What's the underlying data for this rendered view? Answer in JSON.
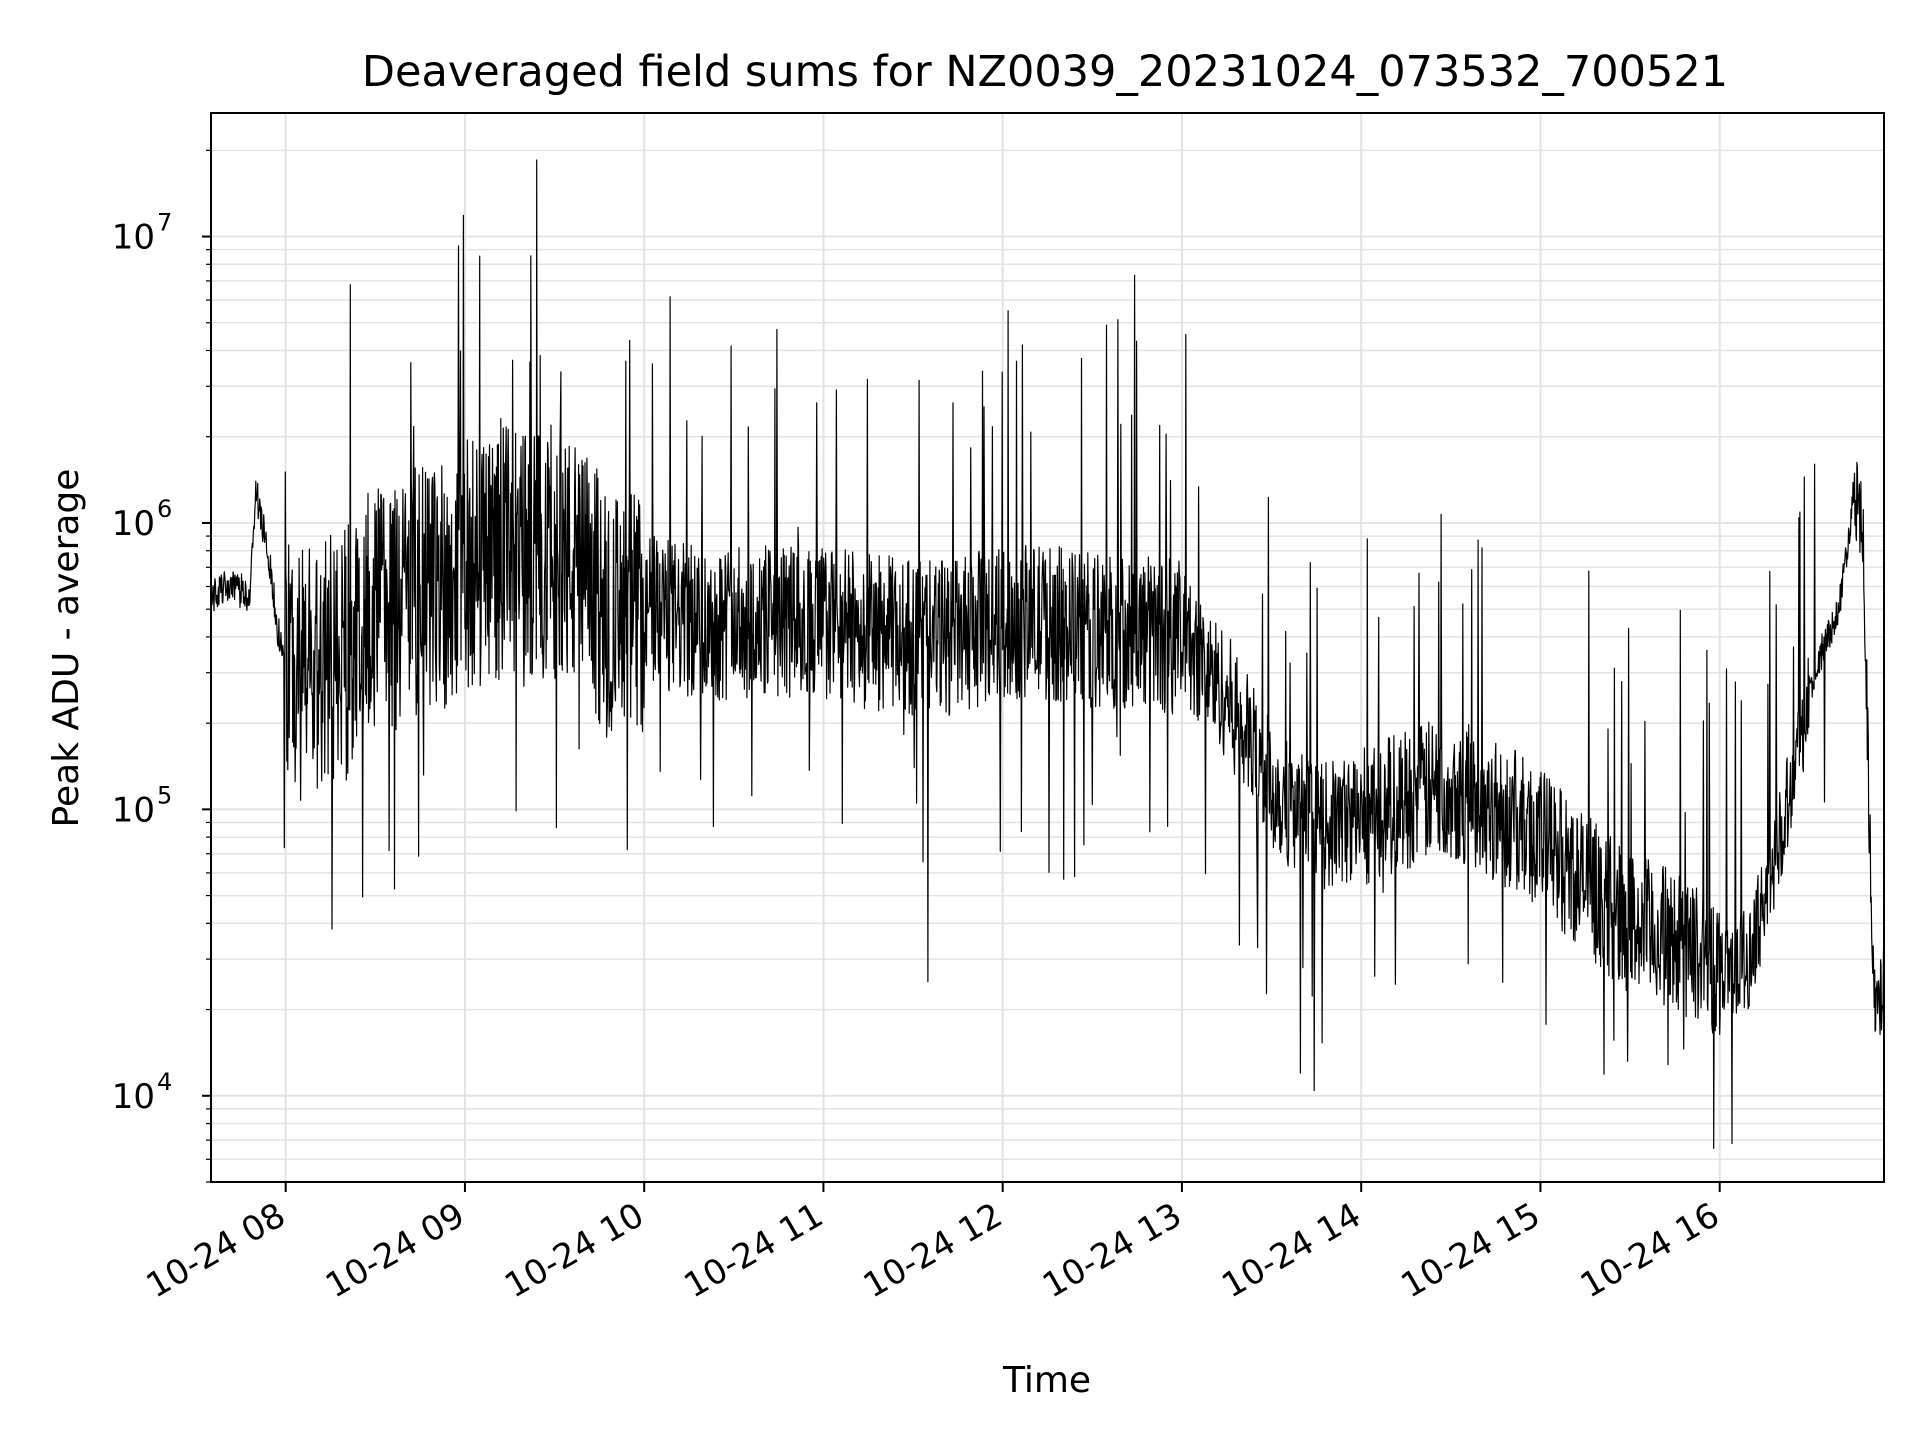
{
  "chart_data": {
    "type": "line",
    "title": "Deaveraged field sums for NZ0039_20231024_073532_700521",
    "xlabel": "Time",
    "ylabel": "Peak ADU - average",
    "yscale": "log",
    "ylim": [
      5000,
      27000000
    ],
    "xlim": [
      "2023-10-24 07:35",
      "2023-10-24 16:55"
    ],
    "grid": true,
    "line_color": "#000000",
    "x_ticks": [
      "10-24 08",
      "10-24 09",
      "10-24 10",
      "10-24 11",
      "10-24 12",
      "10-24 13",
      "10-24 14",
      "10-24 15",
      "10-24 16"
    ],
    "y_ticks": [
      {
        "base": "10",
        "exp": "4",
        "value": 10000
      },
      {
        "base": "10",
        "exp": "5",
        "value": 100000
      },
      {
        "base": "10",
        "exp": "6",
        "value": 1000000
      },
      {
        "base": "10",
        "exp": "7",
        "value": 10000000
      }
    ],
    "series": [
      {
        "x": [
          "2023-10-24 07:35",
          "2023-10-24 07:40",
          "2023-10-24 07:45",
          "2023-10-24 07:48",
          "2023-10-24 07:50",
          "2023-10-24 07:53",
          "2023-10-24 07:55",
          "2023-10-24 07:57",
          "2023-10-24 08:00",
          "2023-10-24 08:10",
          "2023-10-24 08:20",
          "2023-10-24 08:30",
          "2023-10-24 08:40",
          "2023-10-24 08:50",
          "2023-10-24 09:00",
          "2023-10-24 09:10",
          "2023-10-24 09:20",
          "2023-10-24 09:30",
          "2023-10-24 09:40",
          "2023-10-24 09:50",
          "2023-10-24 10:00",
          "2023-10-24 10:15",
          "2023-10-24 10:30",
          "2023-10-24 10:45",
          "2023-10-24 11:00",
          "2023-10-24 11:15",
          "2023-10-24 11:30",
          "2023-10-24 11:45",
          "2023-10-24 12:00",
          "2023-10-24 12:15",
          "2023-10-24 12:30",
          "2023-10-24 12:45",
          "2023-10-24 13:00",
          "2023-10-24 13:15",
          "2023-10-24 13:30",
          "2023-10-24 13:45",
          "2023-10-24 14:00",
          "2023-10-24 14:15",
          "2023-10-24 14:30",
          "2023-10-24 14:45",
          "2023-10-24 15:00",
          "2023-10-24 15:15",
          "2023-10-24 15:30",
          "2023-10-24 15:45",
          "2023-10-24 16:00",
          "2023-10-24 16:10",
          "2023-10-24 16:20",
          "2023-10-24 16:30",
          "2023-10-24 16:35",
          "2023-10-24 16:40",
          "2023-10-24 16:45",
          "2023-10-24 16:48",
          "2023-10-24 16:50",
          "2023-10-24 16:52",
          "2023-10-24 16:55"
        ],
        "y": [
          550000,
          600000,
          580000,
          560000,
          1300000,
          900000,
          700000,
          450000,
          300000,
          300000,
          350000,
          500000,
          550000,
          600000,
          700000,
          800000,
          750000,
          800000,
          650000,
          450000,
          500000,
          450000,
          450000,
          450000,
          450000,
          420000,
          400000,
          400000,
          450000,
          450000,
          420000,
          420000,
          400000,
          250000,
          120000,
          85000,
          95000,
          110000,
          120000,
          100000,
          80000,
          55000,
          40000,
          35000,
          28000,
          30000,
          80000,
          250000,
          380000,
          500000,
          1300000,
          1000000,
          100000,
          18000,
          25000
        ]
      }
    ]
  }
}
